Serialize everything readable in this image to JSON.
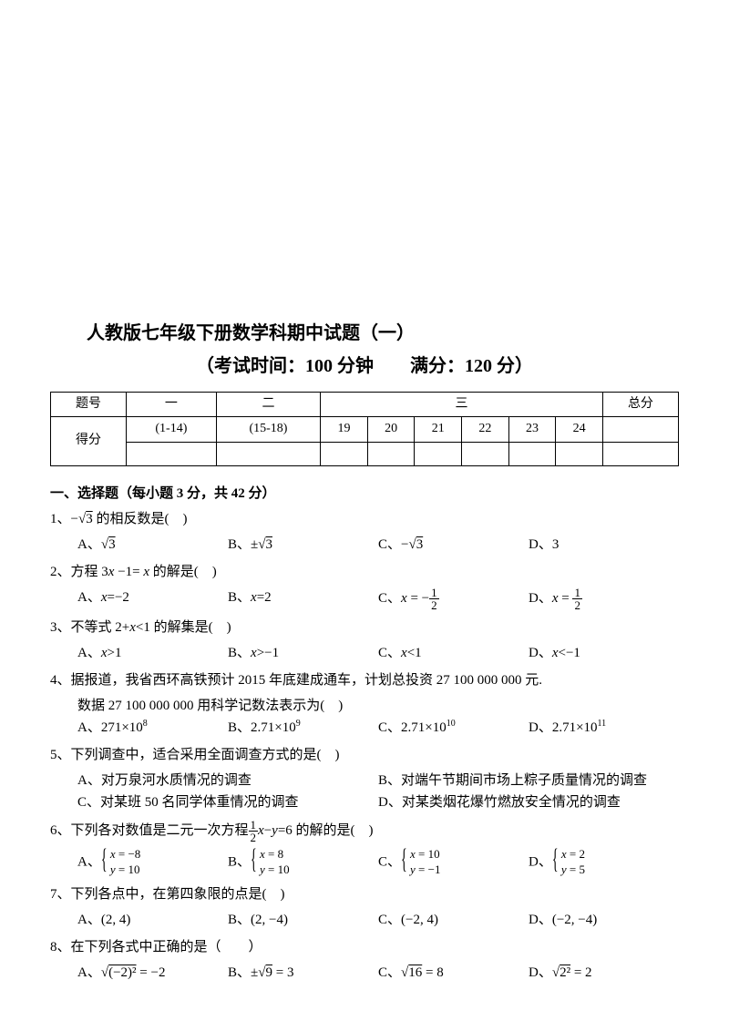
{
  "header": {
    "title1": "人教版七年级下册数学科期中试题（一）",
    "title2": "（考试时间：100 分钟　　满分：120 分）"
  },
  "scoreTable": {
    "row1": [
      "题号",
      "一",
      "二",
      "三",
      "总分"
    ],
    "row2": [
      "得分",
      "(1-14)",
      "(15-18)",
      "19",
      "20",
      "21",
      "22",
      "23",
      "24",
      ""
    ]
  },
  "section1": {
    "title": "一、选择题（每小题 3 分，共 42 分）",
    "q1": {
      "text": "1、−√3 的相反数是(　)",
      "a": "A、√3",
      "b": "B、±√3",
      "c": "C、−√3",
      "d": "D、3"
    },
    "q2": {
      "text": "2、方程 3x −1= x  的解是(　)",
      "a": "A、x=−2",
      "b": "B、x=2",
      "cPrefix": "C、x = −",
      "cNum": "1",
      "cDen": "2",
      "dPrefix": "D、x = ",
      "dNum": "1",
      "dDen": "2"
    },
    "q3": {
      "text": "3、不等式 2+x<1 的解集是(　)",
      "a": "A、x>1",
      "b": "B、x>−1",
      "c": "C、x<1",
      "d": "D、x<−1"
    },
    "q4": {
      "line1": "4、据报道，我省西环高铁预计 2015 年底建成通车，计划总投资 27 100 000 000 元.",
      "line2": "数据 27 100 000 000 用科学记数法表示为(　)",
      "a": "A、271×10⁸",
      "b": "B、2.71×10⁹",
      "c": "C、2.71×10¹⁰",
      "d": "D、2.71×10¹¹"
    },
    "q5": {
      "text": "5、下列调查中，适合采用全面调查方式的是(　)",
      "a": "A、对万泉河水质情况的调查",
      "b": "B、对端午节期间市场上粽子质量情况的调查",
      "c": "C、对某班 50 名同学体重情况的调查",
      "d": "D、对某类烟花爆竹燃放安全情况的调查"
    },
    "q6": {
      "textPre": "6、下列各对数值是二元一次方程",
      "fracNum": "1",
      "fracDen": "2",
      "textPost": "x−y=6 的解的是(　)",
      "aL1": "x = −8",
      "aL2": "y = 10",
      "bL1": "x = 8",
      "bL2": "y = 10",
      "cL1": "x = 10",
      "cL2": "y = −1",
      "dL1": "x = 2",
      "dL2": "y = 5"
    },
    "q7": {
      "text": "7、下列各点中，在第四象限的点是(　)",
      "a": "A、(2, 4)",
      "b": "B、(2, −4)",
      "c": "C、(−2, 4)",
      "d": "D、(−2, −4)"
    },
    "q8": {
      "text": "8、在下列各式中正确的是（　　）",
      "a": "A、√((−2)²) = −2",
      "b": "B、±√9 = 3",
      "c": "C、√16 = 8",
      "d": "D、√(2²) = 2"
    }
  }
}
